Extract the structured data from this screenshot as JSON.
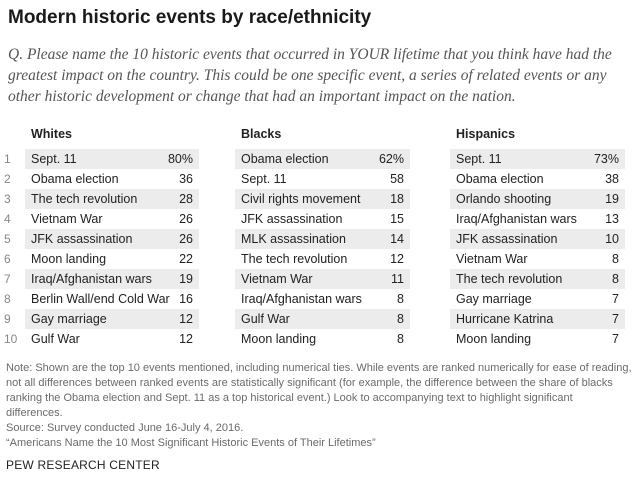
{
  "title": "Modern historic events by race/ethnicity",
  "question": {
    "prefix": "Q.",
    "text": "Please name the 10 historic events that occurred in YOUR lifetime that you think have had the greatest impact on the country. This could be one specific event, a series of related events or any other historic development or change that had an important impact on the nation."
  },
  "ranks": [
    "1",
    "2",
    "3",
    "4",
    "5",
    "6",
    "7",
    "8",
    "9",
    "10"
  ],
  "columns": [
    {
      "header": "Whites",
      "rows": [
        {
          "event": "Sept. 11",
          "value": "80%"
        },
        {
          "event": "Obama election",
          "value": "36"
        },
        {
          "event": "The tech revolution",
          "value": "28"
        },
        {
          "event": "Vietnam War",
          "value": "26"
        },
        {
          "event": "JFK assassination",
          "value": "26"
        },
        {
          "event": "Moon landing",
          "value": "22"
        },
        {
          "event": "Iraq/Afghanistan wars",
          "value": "19"
        },
        {
          "event": "Berlin Wall/end Cold War",
          "value": "16"
        },
        {
          "event": "Gay marriage",
          "value": "12"
        },
        {
          "event": "Gulf War",
          "value": "12"
        }
      ]
    },
    {
      "header": "Blacks",
      "rows": [
        {
          "event": "Obama election",
          "value": "62%"
        },
        {
          "event": "Sept. 11",
          "value": "58"
        },
        {
          "event": "Civil rights movement",
          "value": "18"
        },
        {
          "event": "JFK assassination",
          "value": "15"
        },
        {
          "event": "MLK assassination",
          "value": "14"
        },
        {
          "event": "The tech revolution",
          "value": "12"
        },
        {
          "event": "Vietnam War",
          "value": "11"
        },
        {
          "event": "Iraq/Afghanistan wars",
          "value": "8"
        },
        {
          "event": "Gulf War",
          "value": "8"
        },
        {
          "event": "Moon landing",
          "value": "8"
        }
      ]
    },
    {
      "header": "Hispanics",
      "rows": [
        {
          "event": "Sept. 11",
          "value": "73%"
        },
        {
          "event": "Obama election",
          "value": "38"
        },
        {
          "event": "Orlando shooting",
          "value": "19"
        },
        {
          "event": "Iraq/Afghanistan wars",
          "value": "13"
        },
        {
          "event": "JFK assassination",
          "value": "10"
        },
        {
          "event": "Vietnam War",
          "value": "8"
        },
        {
          "event": "The tech revolution",
          "value": "8"
        },
        {
          "event": "Gay marriage",
          "value": "7"
        },
        {
          "event": "Hurricane Katrina",
          "value": "7"
        },
        {
          "event": "Moon landing",
          "value": "7"
        }
      ]
    }
  ],
  "notes": {
    "note": "Note: Shown are the top 10 events mentioned, including numerical ties. While events are ranked numerically for ease of reading, not all differences between ranked events are statistically significant (for example, the difference between the share of blacks ranking the Obama election and Sept. 11 as a top historical event.) Look to accompanying text to highlight significant differences.",
    "source": "Source: Survey conducted June 16-July 4, 2016.",
    "report": "“Americans Name the 10 Most Significant Historic Events of Their Lifetimes”"
  },
  "footer": "PEW RESEARCH CENTER"
}
